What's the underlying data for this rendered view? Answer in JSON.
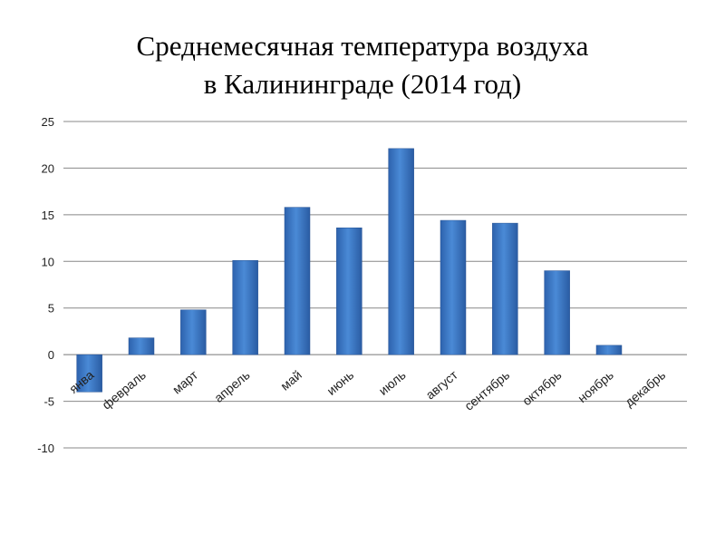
{
  "chart_data": {
    "type": "bar",
    "title_line1": "Среднемесячная температура воздуха",
    "title_line2": "в Калининграде (2014 год)",
    "categories": [
      "январь",
      "февраль",
      "март",
      "апрель",
      "май",
      "июнь",
      "июль",
      "август",
      "сентябрь",
      "октябрь",
      "ноябрь",
      "декабрь"
    ],
    "category_labels_shown": [
      "янва",
      "февраль",
      "март",
      "апрель",
      "май",
      "июнь",
      "июль",
      "август",
      "сентябрь",
      "октябрь",
      "ноябрь",
      "декабрь"
    ],
    "values": [
      -4,
      1.8,
      4.8,
      10.1,
      15.8,
      13.6,
      22.1,
      14.4,
      14.1,
      9.0,
      1.0,
      0
    ],
    "yticks": [
      "25",
      "20",
      "15",
      "10",
      "5",
      "0",
      "-5",
      "-10"
    ],
    "ylim": [
      -10,
      25
    ],
    "xlabel": "",
    "ylabel": "",
    "grid": true,
    "legend": "none",
    "bar_color": "#3c78c8"
  }
}
